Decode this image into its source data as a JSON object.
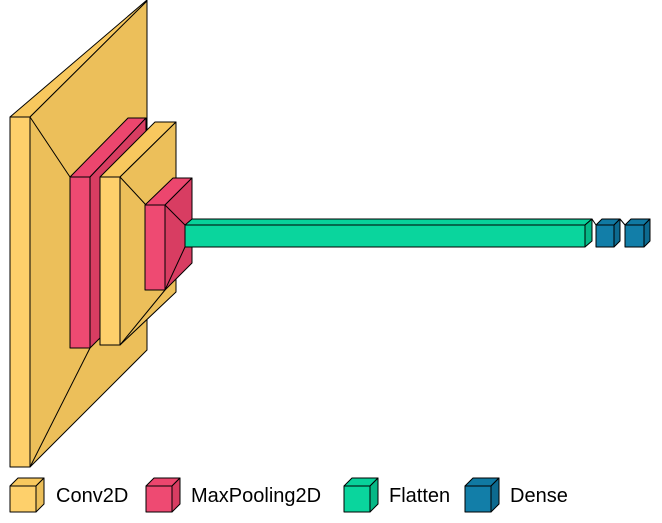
{
  "diagram": {
    "legend": [
      {
        "label": "Conv2D",
        "color": "#f9c95f",
        "icon": "cube-icon"
      },
      {
        "label": "MaxPooling2D",
        "color": "#ec466e",
        "icon": "cube-icon"
      },
      {
        "label": "Flatten",
        "color": "#08d19a",
        "icon": "cube-icon"
      },
      {
        "label": "Dense",
        "color": "#1079a2",
        "icon": "cube-icon"
      }
    ],
    "layers": [
      {
        "type": "Conv2D",
        "color": "#f9c95f"
      },
      {
        "type": "MaxPooling2D",
        "color": "#ec466e"
      },
      {
        "type": "Conv2D",
        "color": "#f9c95f"
      },
      {
        "type": "MaxPooling2D",
        "color": "#ec466e"
      },
      {
        "type": "Flatten",
        "color": "#08d19a"
      },
      {
        "type": "Dense",
        "color": "#1079a2"
      },
      {
        "type": "Dense",
        "color": "#1079a2"
      }
    ]
  }
}
